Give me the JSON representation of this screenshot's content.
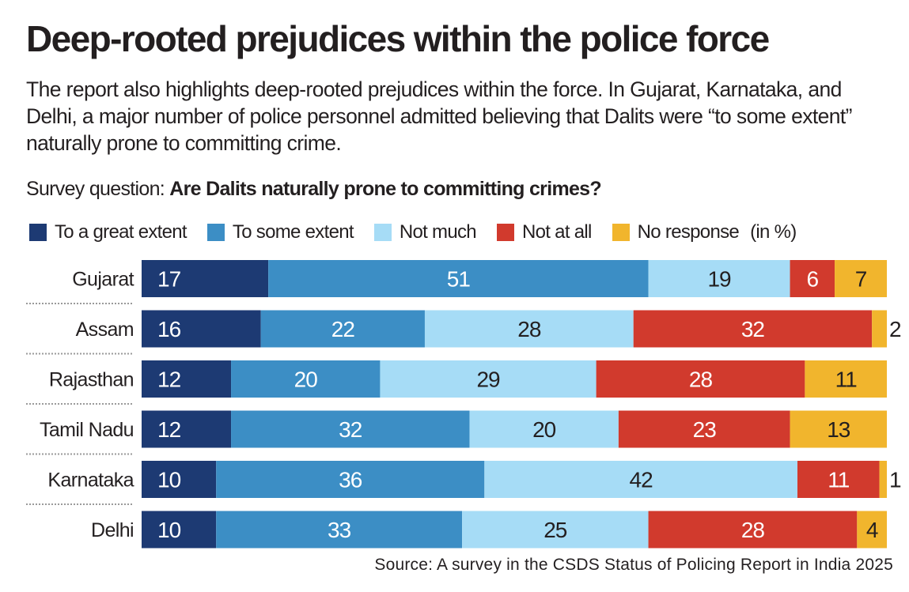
{
  "title": "Deep-rooted prejudices within the police force",
  "intro": "The report also highlights deep-rooted prejudices within the force. In Gujarat, Karnataka, and Delhi, a major number of police personnel admitted believing that Dalits were “to some extent” naturally prone to committing crime.",
  "question_prefix": "Survey question: ",
  "question_text": "Are Dalits naturally prone to committing crimes?",
  "unit_label": "(in %)",
  "source": "Source: A survey in the CSDS Status of Policing Report in India 2025",
  "colors": {
    "great": "#1d3a73",
    "some": "#3c8ec5",
    "not_much": "#a6dcf6",
    "not_at_all": "#d13a2d",
    "no_response": "#f1b52d",
    "text": "#231f20"
  },
  "chart_data": {
    "type": "bar",
    "orientation": "horizontal",
    "stacked": true,
    "title": "Deep-rooted prejudices within the police force",
    "xlabel": "",
    "ylabel": "",
    "xlim": [
      0,
      100
    ],
    "unit": "%",
    "legend_position": "top",
    "categories": [
      "Gujarat",
      "Assam",
      "Rajasthan",
      "Tamil Nadu",
      "Karnataka",
      "Delhi"
    ],
    "series": [
      {
        "name": "To a great extent",
        "color": "#1d3a73",
        "label_color": "#ffffff",
        "values": [
          17,
          16,
          12,
          12,
          10,
          10
        ]
      },
      {
        "name": "To some extent",
        "color": "#3c8ec5",
        "label_color": "#ffffff",
        "values": [
          51,
          22,
          20,
          32,
          36,
          33
        ]
      },
      {
        "name": "Not much",
        "color": "#a6dcf6",
        "label_color": "#231f20",
        "values": [
          19,
          28,
          29,
          20,
          42,
          25
        ]
      },
      {
        "name": "Not at all",
        "color": "#d13a2d",
        "label_color": "#ffffff",
        "values": [
          6,
          32,
          28,
          23,
          11,
          28
        ]
      },
      {
        "name": "No response",
        "color": "#f1b52d",
        "label_color": "#231f20",
        "values": [
          7,
          2,
          11,
          13,
          1,
          4
        ]
      }
    ]
  }
}
